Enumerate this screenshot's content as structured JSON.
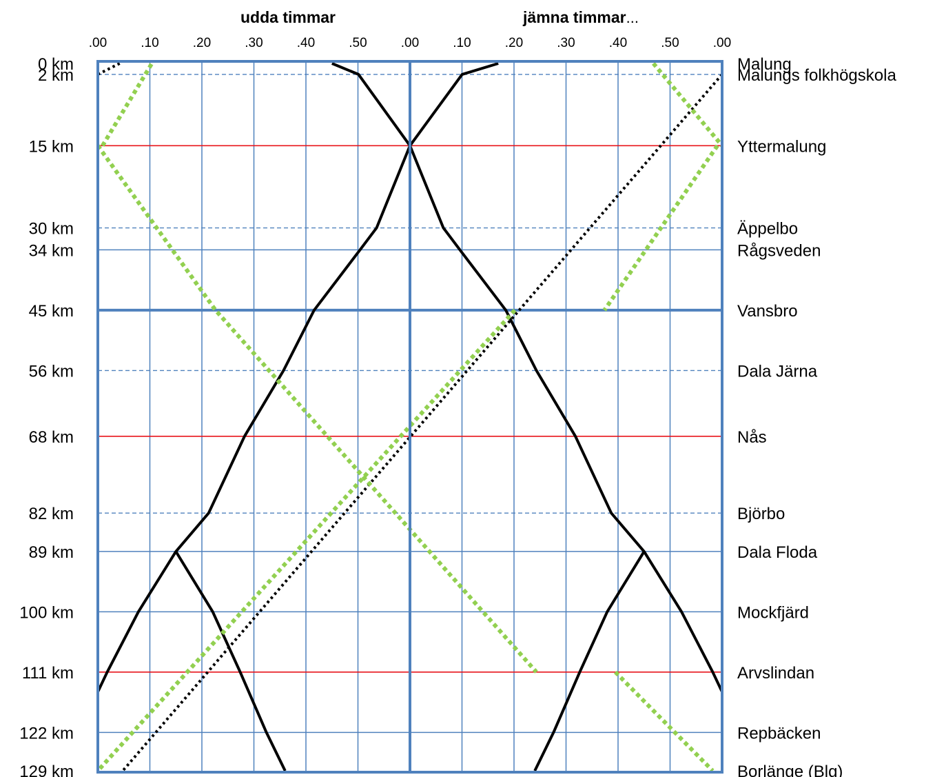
{
  "chart_data": {
    "type": "line",
    "headers": {
      "odd": "udda timmar",
      "even": "jämna timmar",
      "even_suffix": "..."
    },
    "x_ticks": [
      ".00",
      ".10",
      ".20",
      ".30",
      ".40",
      ".50",
      ".00",
      ".10",
      ".20",
      ".30",
      ".40",
      ".50",
      ".00"
    ],
    "x_range_hours": [
      0,
      2
    ],
    "stations": [
      {
        "km": 0,
        "km_label": "0 km",
        "name": "Malung",
        "line": "none"
      },
      {
        "km": 2,
        "km_label": "2 km",
        "name": "Malungs folkhögskola",
        "line": "dashed"
      },
      {
        "km": 15,
        "km_label": "15 km",
        "name": "Yttermalung",
        "line": "red"
      },
      {
        "km": 30,
        "km_label": "30 km",
        "name": "Äppelbo",
        "line": "dashed"
      },
      {
        "km": 34,
        "km_label": "34 km",
        "name": "Rågsveden",
        "line": "solid"
      },
      {
        "km": 45,
        "km_label": "45 km",
        "name": "Vansbro",
        "line": "thick"
      },
      {
        "km": 56,
        "km_label": "56 km",
        "name": "Dala Järna",
        "line": "dashed"
      },
      {
        "km": 68,
        "km_label": "68 km",
        "name": "Nås",
        "line": "red"
      },
      {
        "km": 82,
        "km_label": "82 km",
        "name": "Björbo",
        "line": "dashed"
      },
      {
        "km": 89,
        "km_label": "89 km",
        "name": "Dala Floda",
        "line": "solid"
      },
      {
        "km": 100,
        "km_label": "100 km",
        "name": "Mockfjärd",
        "line": "solid"
      },
      {
        "km": 111,
        "km_label": "111 km",
        "name": "Arvslindan",
        "line": "red"
      },
      {
        "km": 122,
        "km_label": "122 km",
        "name": "Repbäcken",
        "line": "solid"
      },
      {
        "km": 129,
        "km_label": "129 km",
        "name": "Borlänge (Blg)",
        "line": "solid"
      }
    ],
    "series": [
      {
        "style": "solid-black",
        "points": [
          [
            0.75,
            0
          ],
          [
            0.835,
            2
          ],
          [
            1.0,
            15
          ],
          [
            1.107,
            30
          ],
          [
            1.16,
            34
          ],
          [
            1.307,
            45
          ],
          [
            1.405,
            56
          ],
          [
            1.53,
            68
          ],
          [
            1.645,
            82
          ],
          [
            1.75,
            89
          ],
          [
            1.87,
            100
          ],
          [
            1.97,
            111
          ],
          [
            2.12,
            129
          ]
        ]
      },
      {
        "style": "solid-black",
        "points": [
          [
            1.283,
            0
          ],
          [
            1.167,
            2
          ],
          [
            1.0,
            15
          ],
          [
            0.893,
            30
          ],
          [
            0.84,
            34
          ],
          [
            0.693,
            45
          ],
          [
            0.595,
            56
          ],
          [
            0.47,
            68
          ],
          [
            0.355,
            82
          ],
          [
            0.25,
            89
          ],
          [
            0.13,
            100
          ],
          [
            0.03,
            111
          ],
          [
            -0.12,
            129
          ]
        ]
      },
      {
        "style": "solid-black",
        "points": [
          [
            0.25,
            89
          ],
          [
            0.368,
            100
          ],
          [
            0.456,
            111
          ],
          [
            0.54,
            122
          ],
          [
            0.6,
            129
          ]
        ]
      },
      {
        "style": "solid-black",
        "points": [
          [
            1.75,
            89
          ],
          [
            1.632,
            100
          ],
          [
            1.544,
            111
          ],
          [
            1.46,
            122
          ],
          [
            1.4,
            129
          ]
        ]
      },
      {
        "style": "dotted-black",
        "points": [
          [
            0.0,
            2
          ],
          [
            0.07,
            0
          ]
        ]
      },
      {
        "style": "dotted-black",
        "points": [
          [
            2.0,
            2
          ],
          [
            0.08,
            129
          ]
        ]
      },
      {
        "style": "dotted-green",
        "points": [
          [
            0.015,
            15
          ],
          [
            0.173,
            0
          ]
        ]
      },
      {
        "style": "dotted-green",
        "points": [
          [
            0.0,
            15
          ],
          [
            0.377,
            45
          ],
          [
            1.405,
            111
          ]
        ]
      },
      {
        "style": "dotted-green",
        "points": [
          [
            1.78,
            0
          ],
          [
            2.0,
            15
          ]
        ]
      },
      {
        "style": "dotted-green",
        "points": [
          [
            1.985,
            15
          ],
          [
            1.623,
            45
          ]
        ]
      },
      {
        "style": "dotted-green",
        "points": [
          [
            1.336,
            45
          ],
          [
            0.0,
            129
          ]
        ]
      },
      {
        "style": "dotted-green",
        "points": [
          [
            1.658,
            111
          ],
          [
            1.97,
            129
          ]
        ]
      }
    ]
  }
}
